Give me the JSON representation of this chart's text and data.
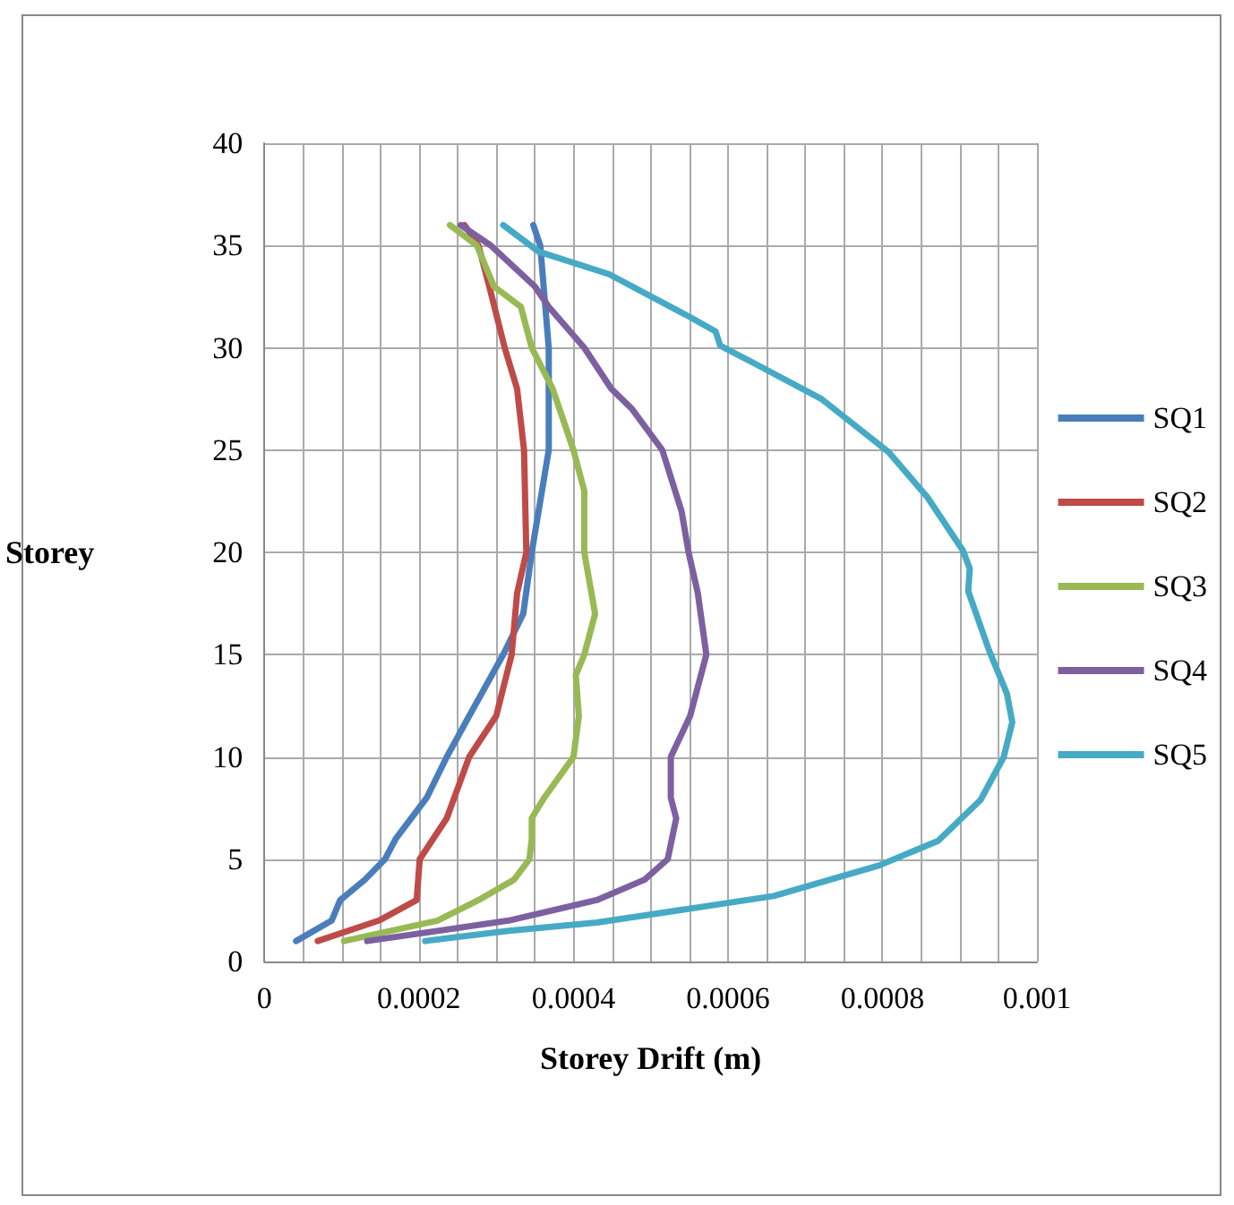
{
  "chart_data": {
    "type": "line",
    "xlabel": "Storey Drift (m)",
    "ylabel": "Storey",
    "xlim": [
      0,
      0.001
    ],
    "ylim": [
      0,
      40
    ],
    "xticks": [
      0,
      {
        "value": 5e-05,
        "label": null
      },
      {
        "value": 0.0001,
        "label": null
      },
      {
        "value": 0.00015,
        "label": null
      },
      0.0002,
      {
        "value": 0.00025,
        "label": null
      },
      {
        "value": 0.0003,
        "label": null
      },
      {
        "value": 0.00035,
        "label": null
      },
      0.0004,
      {
        "value": 0.00045,
        "label": null
      },
      {
        "value": 0.0005,
        "label": null
      },
      {
        "value": 0.00055,
        "label": null
      },
      0.0006,
      {
        "value": 0.00065,
        "label": null
      },
      {
        "value": 0.0007,
        "label": null
      },
      {
        "value": 0.00075,
        "label": null
      },
      0.0008,
      {
        "value": 0.00085,
        "label": null
      },
      {
        "value": 0.0009,
        "label": null
      },
      {
        "value": 0.00095,
        "label": null
      },
      0.001
    ],
    "yticks": [
      0,
      5,
      10,
      15,
      20,
      25,
      30,
      35,
      40
    ],
    "grid": true,
    "legend": "right",
    "marker": "none",
    "line_style": "solid",
    "series": [
      {
        "name": "SQ1",
        "color": "#4a7ebb",
        "x": [
          4.1e-05,
          8.7e-05,
          9.8e-05,
          0.00013,
          0.000156,
          0.00017,
          0.00021,
          0.000236,
          0.000265,
          0.000309,
          0.000335,
          0.000346,
          0.000368,
          0.000368,
          0.000357,
          0.000348
        ],
        "values": [
          1,
          2,
          3,
          4,
          5,
          6,
          8,
          10,
          12,
          15,
          17,
          20,
          25,
          30,
          35,
          36
        ]
      },
      {
        "name": "SQ2",
        "color": "#be4b48",
        "x": [
          6.9e-05,
          0.000148,
          0.000197,
          0.000201,
          0.000236,
          0.000265,
          0.0003,
          0.00032,
          0.000327,
          0.000339,
          0.000336,
          0.000327,
          0.000311,
          0.000291,
          0.000277,
          0.000259
        ],
        "values": [
          1,
          2,
          3,
          5,
          7,
          10,
          12,
          15,
          18,
          20,
          25,
          28,
          30,
          33,
          35,
          36
        ]
      },
      {
        "name": "SQ3",
        "color": "#98b954",
        "x": [
          0.000103,
          0.000224,
          0.000277,
          0.000323,
          0.000343,
          0.000346,
          0.000346,
          0.000362,
          0.0004,
          0.000407,
          0.000403,
          0.000414,
          0.000428,
          0.000414,
          0.000414,
          0.0004,
          0.000373,
          0.000346,
          0.000332,
          0.000297,
          0.000275,
          0.00024
        ],
        "values": [
          1,
          2,
          3,
          4,
          5,
          6,
          7,
          8,
          10,
          12,
          14,
          15,
          17,
          20,
          23,
          25,
          28,
          30,
          32,
          33,
          35,
          36
        ]
      },
      {
        "name": "SQ4",
        "color": "#7d60a0",
        "x": [
          0.000133,
          0.000316,
          0.00043,
          0.000492,
          0.000522,
          0.000533,
          0.000526,
          0.000526,
          0.000551,
          0.000572,
          0.000561,
          0.000549,
          0.00054,
          0.000515,
          0.000476,
          0.000449,
          0.000414,
          0.000368,
          0.00035,
          0.000293,
          0.000254
        ],
        "values": [
          1,
          2,
          3,
          4,
          5,
          7,
          8,
          10,
          12,
          15,
          18,
          20,
          22,
          25,
          27,
          28,
          30,
          32,
          33,
          35,
          36
        ]
      },
      {
        "name": "SQ5",
        "color": "#46aac5",
        "x": [
          0.000208,
          0.000316,
          0.00043,
          0.000659,
          0.000796,
          0.000872,
          0.000927,
          0.000957,
          0.000968,
          0.000961,
          0.000938,
          0.000911,
          0.000913,
          0.000904,
          0.000858,
          0.000808,
          0.000721,
          0.000636,
          0.00059,
          0.000584,
          0.000551,
          0.000446,
          0.000355,
          0.000309
        ],
        "values": [
          1,
          1.5,
          1.9,
          3.2,
          4.7,
          5.9,
          7.9,
          10,
          11.7,
          13.1,
          15.2,
          18.1,
          19.2,
          20.1,
          22.7,
          24.9,
          27.5,
          29.2,
          30.1,
          30.8,
          31.5,
          33.6,
          34.7,
          36
        ]
      }
    ]
  }
}
